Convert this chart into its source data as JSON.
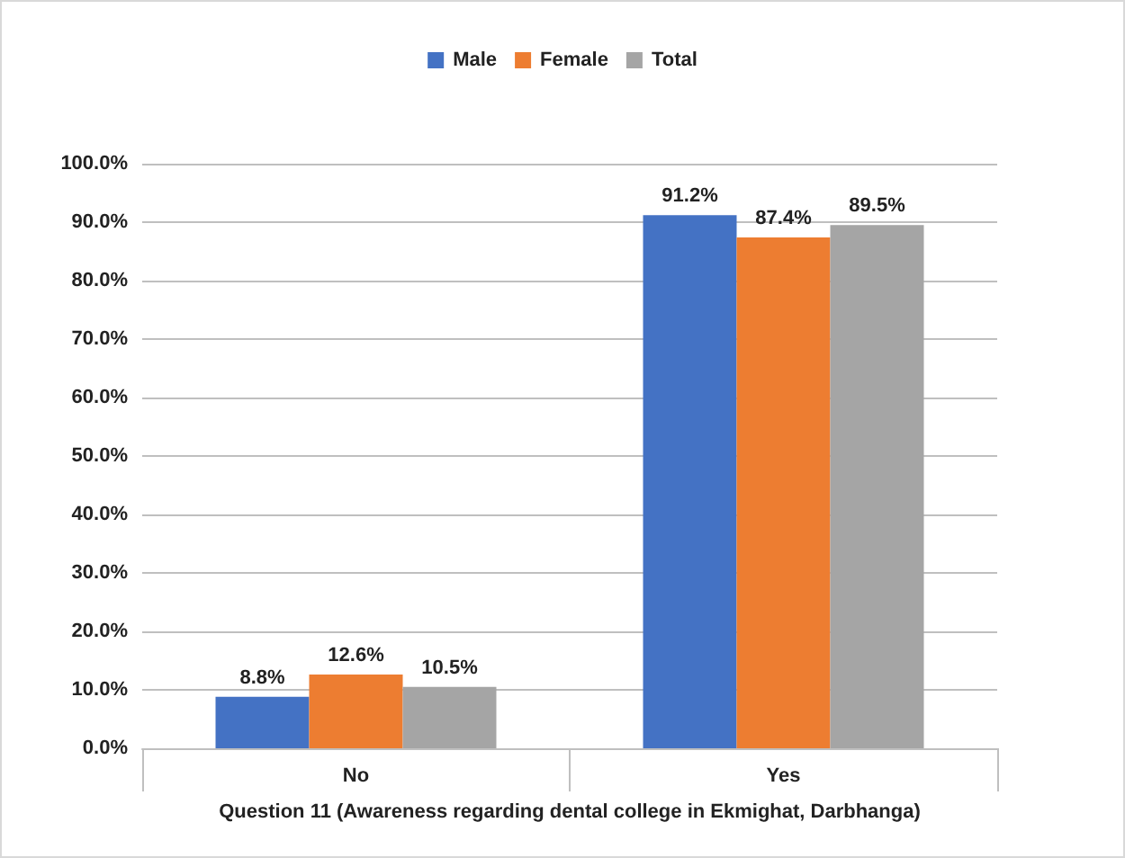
{
  "chart_data": {
    "type": "bar",
    "categories": [
      "No",
      "Yes"
    ],
    "series": [
      {
        "name": "Male",
        "color": "#4472c4",
        "values": [
          8.8,
          91.2
        ],
        "value_labels": [
          "8.8%",
          "91.2%"
        ]
      },
      {
        "name": "Female",
        "color": "#ed7d31",
        "values": [
          12.6,
          87.4
        ],
        "value_labels": [
          "12.6%",
          "87.4%"
        ]
      },
      {
        "name": "Total",
        "color": "#a5a5a5",
        "values": [
          10.5,
          89.5
        ],
        "value_labels": [
          "10.5%",
          "89.5%"
        ]
      }
    ],
    "xlabel": "Question 11 (Awareness regarding dental college in Ekmighat, Darbhanga)",
    "ylim": [
      0,
      100
    ],
    "yticks": [
      {
        "value": 0,
        "label": "0.0%"
      },
      {
        "value": 10,
        "label": "10.0%"
      },
      {
        "value": 20,
        "label": "20.0%"
      },
      {
        "value": 30,
        "label": "30.0%"
      },
      {
        "value": 40,
        "label": "40.0%"
      },
      {
        "value": 50,
        "label": "50.0%"
      },
      {
        "value": 60,
        "label": "60.0%"
      },
      {
        "value": 70,
        "label": "70.0%"
      },
      {
        "value": 80,
        "label": "80.0%"
      },
      {
        "value": 90,
        "label": "90.0%"
      },
      {
        "value": 100,
        "label": "100.0%"
      }
    ],
    "grid": "y",
    "legend": "top"
  }
}
